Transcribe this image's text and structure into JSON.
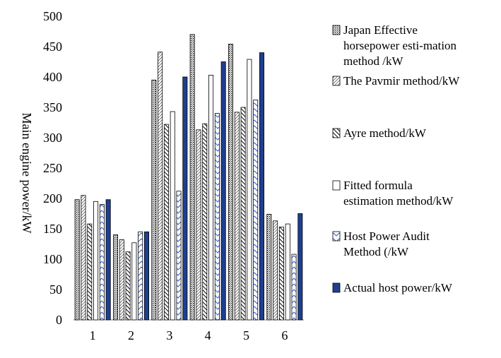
{
  "chart_data": {
    "type": "bar",
    "ylabel": "Main engine power/kW",
    "xlabel": "",
    "ylim": [
      0,
      500
    ],
    "yticks": [
      0,
      50,
      100,
      150,
      200,
      250,
      300,
      350,
      400,
      450,
      500
    ],
    "categories": [
      "1",
      "2",
      "3",
      "4",
      "5",
      "6"
    ],
    "grid": false,
    "legend_position": "right",
    "series": [
      {
        "name": "Japan Effective horsepower esti-mation method /kW",
        "legend_lines": [
          "Japan Effective",
          "horsepower esti-mation",
          "method /kW"
        ],
        "pattern": "dots",
        "values": [
          198,
          140,
          395,
          470,
          454,
          174
        ]
      },
      {
        "name": "The Pavmir method/kW",
        "legend_lines": [
          "The Pavmir method/kW"
        ],
        "pattern": "diag-fine",
        "values": [
          205,
          132,
          441,
          313,
          342,
          163
        ]
      },
      {
        "name": "Ayre method/kW",
        "legend_lines": [
          "Ayre method/kW"
        ],
        "pattern": "diag-bold",
        "values": [
          158,
          112,
          322,
          323,
          350,
          153
        ]
      },
      {
        "name": "Fitted formula estimation method/kW",
        "legend_lines": [
          "Fitted formula",
          "estimation method/kW"
        ],
        "pattern": "outline",
        "values": [
          195,
          127,
          343,
          403,
          429,
          158
        ]
      },
      {
        "name": "Host Power Audit Method (/kW",
        "legend_lines": [
          "Host Power Audit",
          "Method (/kW"
        ],
        "pattern": "zigzag",
        "values": [
          190,
          145,
          212,
          340,
          362,
          108
        ]
      },
      {
        "name": "Actual host power/kW",
        "legend_lines": [
          "Actual host power/kW"
        ],
        "pattern": "solid",
        "values": [
          198,
          145,
          400,
          425,
          440,
          175
        ]
      }
    ],
    "colors": {
      "axis": "#808080",
      "bar_stroke": "#000000",
      "solid_fill": "#1f3f8f",
      "zigzag_line": "#2f5bd0"
    }
  }
}
